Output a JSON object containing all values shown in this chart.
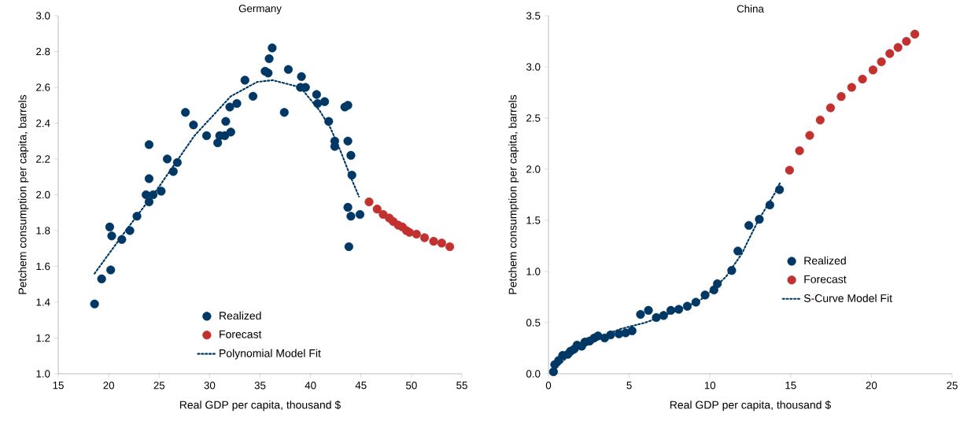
{
  "chart_data": [
    {
      "type": "scatter",
      "title": "Germany",
      "xlabel": "Real GDP per capita, thousand $",
      "ylabel": "Petchem consumption per capita, barrels",
      "xlim": [
        15,
        55
      ],
      "ylim": [
        1,
        3
      ],
      "xticks": [
        15,
        20,
        25,
        30,
        35,
        40,
        45,
        50,
        55
      ],
      "yticks": [
        {
          "value": 1,
          "label": "1.0"
        },
        1.2,
        1.4,
        1.6,
        1.8,
        {
          "value": 2,
          "label": "2.0"
        },
        2.2,
        2.4,
        2.6,
        2.8,
        {
          "value": 3,
          "label": "3.0"
        }
      ],
      "legend": "bottom",
      "marker": "circle",
      "grid": false,
      "series": [
        {
          "name": "Realized",
          "color": "#003865",
          "x": [
            18.6,
            19.3,
            20.1,
            20.3,
            20.2,
            21.3,
            22.1,
            22.8,
            23.7,
            24.0,
            24.0,
            24.0,
            24.4,
            25.2,
            25.8,
            26.4,
            26.8,
            27.6,
            28.4,
            29.7,
            30.8,
            31.0,
            31.5,
            31.6,
            32.0,
            32.1,
            32.7,
            33.5,
            34.3,
            35.5,
            35.8,
            35.9,
            36.2,
            37.4,
            37.8,
            39.1,
            39.0,
            39.5,
            40.6,
            40.7,
            41.4,
            41.8,
            42.4,
            42.4,
            43.4,
            43.7,
            43.7,
            44.0,
            44.1,
            43.7,
            44.0,
            44.9,
            43.8
          ],
          "values": [
            1.39,
            1.53,
            1.82,
            1.77,
            1.58,
            1.75,
            1.8,
            1.88,
            2.0,
            1.96,
            2.09,
            2.28,
            2.0,
            2.02,
            2.2,
            2.13,
            2.18,
            2.46,
            2.39,
            2.33,
            2.29,
            2.33,
            2.33,
            2.41,
            2.49,
            2.35,
            2.51,
            2.64,
            2.55,
            2.69,
            2.68,
            2.76,
            2.82,
            2.46,
            2.7,
            2.66,
            2.6,
            2.6,
            2.56,
            2.51,
            2.52,
            2.41,
            2.27,
            2.3,
            2.49,
            2.5,
            2.3,
            2.22,
            2.11,
            1.93,
            1.88,
            1.89,
            1.71
          ]
        },
        {
          "name": "Forecast",
          "color": "#c0312f",
          "x": [
            45.8,
            46.6,
            47.2,
            47.8,
            48.2,
            48.7,
            49.1,
            49.5,
            49.8,
            50.5,
            51.3,
            52.2,
            53.0,
            53.8
          ],
          "values": [
            1.96,
            1.92,
            1.89,
            1.87,
            1.85,
            1.83,
            1.82,
            1.8,
            1.79,
            1.78,
            1.76,
            1.74,
            1.73,
            1.71
          ]
        },
        {
          "name": "Polynomial Model Fit",
          "type": "line",
          "line_style": "dotted",
          "marker": "none",
          "color": "#003865",
          "x": [
            18.6,
            21.7,
            24.8,
            28.5,
            32.1,
            34.7,
            36.25,
            39.0,
            40.9,
            42.0,
            43.0,
            44.05,
            44.8
          ],
          "values": [
            1.56,
            1.8,
            2.03,
            2.33,
            2.55,
            2.63,
            2.64,
            2.6,
            2.47,
            2.37,
            2.24,
            2.09,
            1.99
          ]
        }
      ]
    },
    {
      "type": "scatter",
      "title": "China",
      "xlabel": "Real GDP per capita, thousand $",
      "ylabel": "Petchem consumption per capita, barrels",
      "xlim": [
        0,
        25
      ],
      "ylim": [
        0,
        3.5
      ],
      "xticks": [
        0,
        5,
        10,
        15,
        20,
        25
      ],
      "yticks": [
        {
          "value": 0,
          "label": "0.0"
        },
        0.5,
        {
          "value": 1,
          "label": "1.0"
        },
        1.5,
        {
          "value": 2,
          "label": "2.0"
        },
        2.5,
        {
          "value": 3,
          "label": "3.0"
        },
        3.5
      ],
      "legend": "bottom right",
      "marker": "circle",
      "grid": false,
      "series": [
        {
          "name": "Realized",
          "color": "#003865",
          "x": [
            0.31,
            0.39,
            0.63,
            0.88,
            1.2,
            1.36,
            1.58,
            1.77,
            2.06,
            2.26,
            2.55,
            2.83,
            3.07,
            3.48,
            3.85,
            4.37,
            4.78,
            5.18,
            5.7,
            6.19,
            6.68,
            7.13,
            7.58,
            8.07,
            8.6,
            9.13,
            9.7,
            10.25,
            10.46,
            11.35,
            11.73,
            12.41,
            13.06,
            13.71,
            14.31
          ],
          "values": [
            0.02,
            0.09,
            0.13,
            0.18,
            0.19,
            0.22,
            0.24,
            0.28,
            0.27,
            0.31,
            0.32,
            0.35,
            0.37,
            0.35,
            0.38,
            0.39,
            0.4,
            0.42,
            0.58,
            0.62,
            0.55,
            0.57,
            0.62,
            0.63,
            0.66,
            0.7,
            0.77,
            0.82,
            0.88,
            1.01,
            1.2,
            1.45,
            1.51,
            1.65,
            1.8
          ]
        },
        {
          "name": "Forecast",
          "color": "#c0312f",
          "x": [
            14.93,
            15.55,
            16.18,
            16.83,
            17.47,
            18.13,
            18.78,
            19.45,
            20.1,
            20.62,
            21.14,
            21.65,
            22.17,
            22.69
          ],
          "values": [
            1.99,
            2.18,
            2.33,
            2.48,
            2.6,
            2.71,
            2.8,
            2.88,
            2.97,
            3.05,
            3.13,
            3.19,
            3.25,
            3.32
          ]
        },
        {
          "name": "S-Curve Model Fit",
          "type": "line",
          "line_style": "dotted",
          "marker": "none",
          "color": "#003865",
          "x": [
            0.3,
            1,
            2,
            3,
            4,
            4.5,
            5,
            6,
            6.5,
            7,
            8,
            9,
            9.4,
            10,
            11,
            12,
            12.33,
            13,
            14,
            14.35
          ],
          "values": [
            0.03,
            0.14,
            0.25,
            0.33,
            0.41,
            0.44,
            0.46,
            0.5,
            0.53,
            0.56,
            0.62,
            0.69,
            0.72,
            0.8,
            0.95,
            1.18,
            1.29,
            1.5,
            1.76,
            1.87
          ]
        }
      ]
    }
  ]
}
